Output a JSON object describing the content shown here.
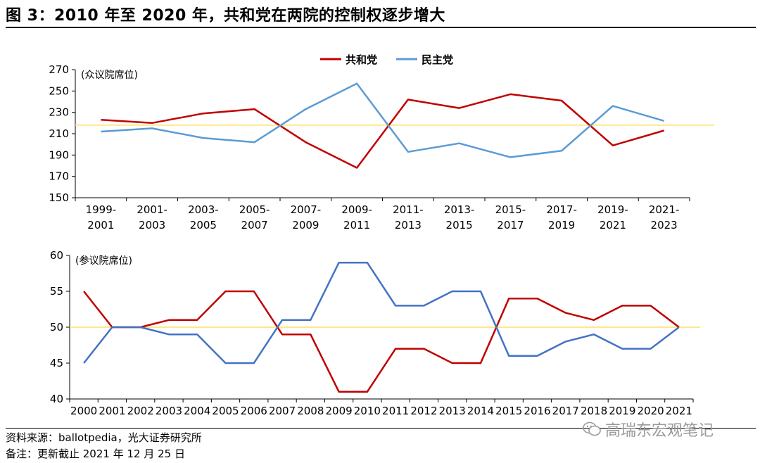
{
  "title": "图 3：2010 年至 2020 年，共和党在两院的控制权逐步增大",
  "source": "资料来源：ballotpedia，光大证券研究所",
  "note": "备注：更新截止 2021 年 12 月 25 日",
  "watermark": "高瑞东宏观笔记",
  "colors": {
    "republican": "#c00000",
    "democrat_top": "#5b9bd5",
    "democrat_bottom": "#4472c4",
    "majority_line": "#ffe066"
  },
  "chart_data": [
    {
      "type": "line",
      "ylabel": "(众议院席位)",
      "categories": [
        "1999-\n2001",
        "2001-\n2003",
        "2003-\n2005",
        "2005-\n2007",
        "2007-\n2009",
        "2009-\n2011",
        "2011-\n2013",
        "2013-\n2015",
        "2015-\n2017",
        "2017-\n2019",
        "2019-\n2021",
        "2021-\n2023"
      ],
      "ylim": [
        150,
        270
      ],
      "yticks": [
        150,
        170,
        190,
        210,
        230,
        250,
        270
      ],
      "reference_line": 218,
      "legend": {
        "position": "top-center",
        "entries": [
          "共和党",
          "民主党"
        ]
      },
      "series": [
        {
          "name": "共和党",
          "color": "#c00000",
          "values": [
            223,
            220,
            229,
            233,
            202,
            178,
            242,
            234,
            247,
            241,
            199,
            213
          ]
        },
        {
          "name": "民主党",
          "color": "#5b9bd5",
          "values": [
            212,
            215,
            206,
            202,
            233,
            257,
            193,
            201,
            188,
            194,
            236,
            222
          ]
        }
      ]
    },
    {
      "type": "line",
      "ylabel": "(参议院席位)",
      "categories": [
        "2000",
        "2001",
        "2002",
        "2003",
        "2004",
        "2005",
        "2006",
        "2007",
        "2008",
        "2009",
        "2010",
        "2011",
        "2012",
        "2013",
        "2014",
        "2015",
        "2016",
        "2017",
        "2018",
        "2019",
        "2020",
        "2021"
      ],
      "ylim": [
        40,
        60
      ],
      "yticks": [
        40,
        45,
        50,
        55,
        60
      ],
      "reference_line": 50,
      "series": [
        {
          "name": "共和党",
          "color": "#c00000",
          "values": [
            55,
            50,
            50,
            51,
            51,
            55,
            55,
            49,
            49,
            41,
            41,
            47,
            47,
            45,
            45,
            54,
            54,
            52,
            51,
            53,
            53,
            50
          ]
        },
        {
          "name": "民主党",
          "color": "#4472c4",
          "values": [
            45,
            50,
            50,
            49,
            49,
            45,
            45,
            51,
            51,
            59,
            59,
            53,
            53,
            55,
            55,
            46,
            46,
            48,
            49,
            47,
            47,
            50
          ]
        }
      ]
    }
  ]
}
